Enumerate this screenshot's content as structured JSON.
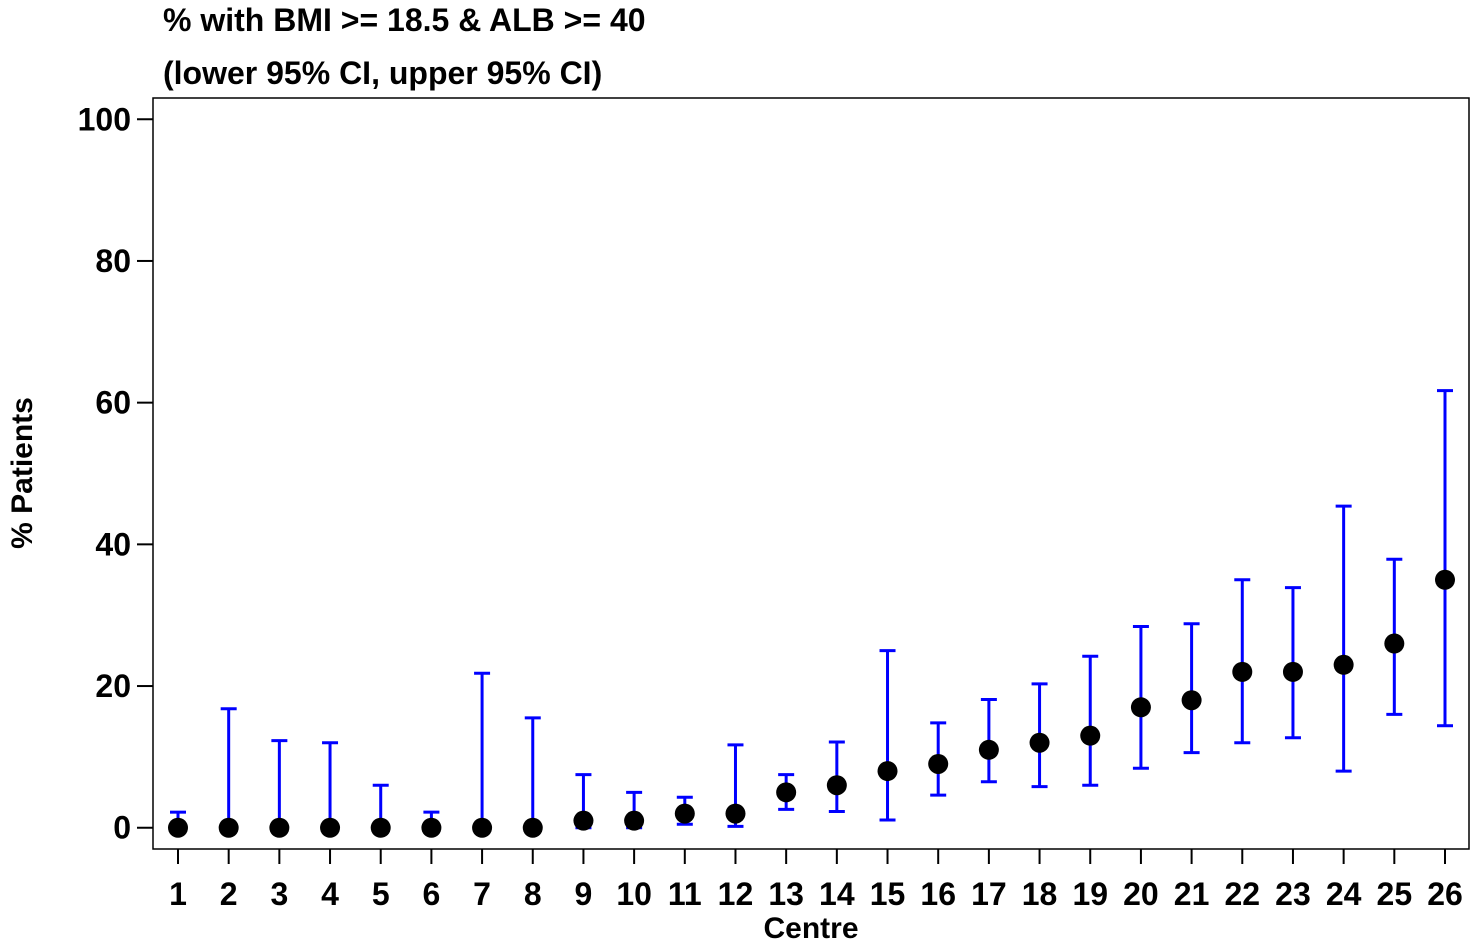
{
  "chart_data": {
    "type": "scatter",
    "title": "% with BMI >= 18.5 & ALB >= 40",
    "subtitle": "(lower 95% CI, upper 95% CI)",
    "xlabel": "Centre",
    "ylabel": "% Patients",
    "ylim": [
      -3,
      103
    ],
    "yticks": [
      0,
      20,
      40,
      60,
      80,
      100
    ],
    "categories": [
      "1",
      "2",
      "3",
      "4",
      "5",
      "6",
      "7",
      "8",
      "9",
      "10",
      "11",
      "12",
      "13",
      "14",
      "15",
      "16",
      "17",
      "18",
      "19",
      "20",
      "21",
      "22",
      "23",
      "24",
      "25",
      "26"
    ],
    "series": [
      {
        "values": [
          0,
          0,
          0,
          0,
          0,
          0,
          0,
          0,
          1,
          1,
          2,
          2,
          5,
          6,
          8,
          9,
          11,
          12,
          13,
          17,
          18,
          22,
          22,
          23,
          26,
          35
        ],
        "lower": [
          0,
          0,
          0,
          0,
          0,
          0,
          0,
          0,
          0,
          0,
          0.5,
          0.2,
          2.6,
          2.3,
          1.1,
          4.6,
          6.5,
          5.8,
          6,
          8.4,
          10.6,
          12,
          12.7,
          8,
          16,
          14.4
        ],
        "upper": [
          2.2,
          16.8,
          12.3,
          12,
          6,
          2.2,
          21.8,
          15.5,
          7.5,
          5,
          4.3,
          11.7,
          7.5,
          12.1,
          25,
          14.8,
          18.1,
          20.3,
          24.2,
          28.4,
          28.8,
          35,
          33.9,
          45.4,
          37.9,
          61.7
        ],
        "marker_color": "#000000",
        "ci_color": "#0000ff"
      }
    ],
    "grid": false,
    "legend": "none"
  }
}
